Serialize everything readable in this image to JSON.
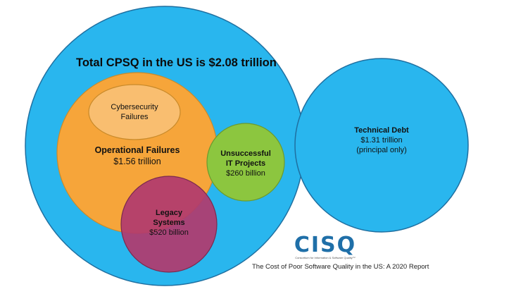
{
  "title": "Total CPSQ in the US is $2.08 trillion",
  "circles": {
    "total_cpsq": {
      "color": "#29b6ee",
      "stroke": "#1f6fa0"
    },
    "technical_debt": {
      "color": "#29b6ee",
      "stroke": "#1f6fa0",
      "label": "Technical Debt",
      "value": "$1.31 trillion",
      "note": "(principal only)"
    },
    "operational_failures": {
      "color": "#f6a53a",
      "stroke": "#c98a2a",
      "label": "Operational Failures",
      "value": "$1.56 trillion"
    },
    "cybersecurity_failures": {
      "color": "#f9be70",
      "stroke": "#c98a2a",
      "line1": "Cybersecurity",
      "line2": "Failures"
    },
    "unsuccessful_it_projects": {
      "color": "#8cc63f",
      "stroke": "#6b9a2e",
      "line1": "Unsuccessful",
      "line2": "IT Projects",
      "value": "$260 billion"
    },
    "legacy_systems": {
      "color": "#b03a6e",
      "stroke": "#7b2a4e",
      "line1": "Legacy",
      "line2": "Systems",
      "value": "$520 billion"
    }
  },
  "logo": {
    "text": "CISQ",
    "tagline": "Consortium for Information & Software Quality™",
    "color": "#1f6fa8"
  },
  "source_caption": "The Cost of Poor Software Quality in the US: A 2020 Report"
}
